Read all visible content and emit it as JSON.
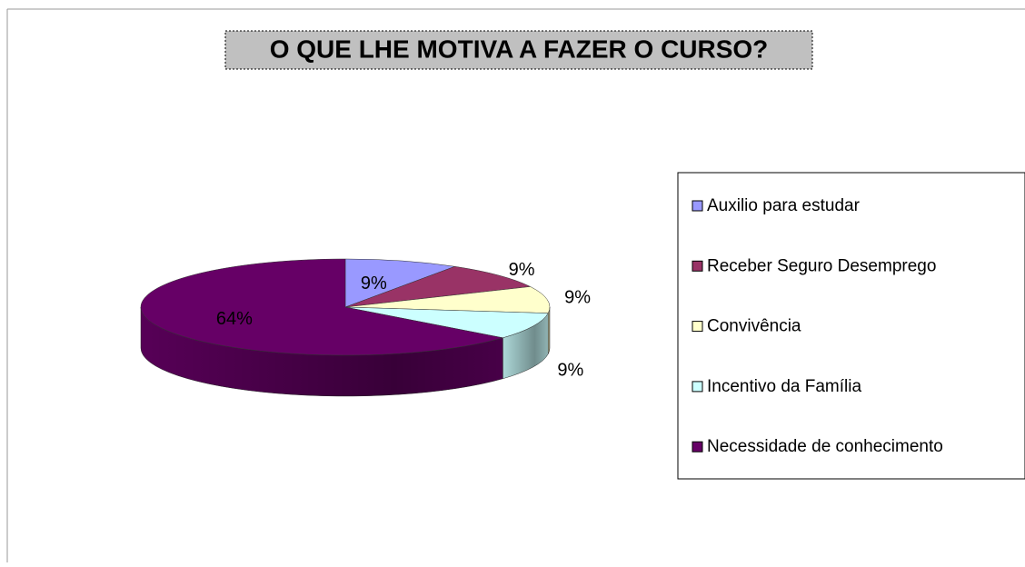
{
  "chart_data": {
    "type": "pie3d",
    "title": "O QUE LHE MOTIVA A FAZER O CURSO?",
    "categories": [
      "Auxilio para estudar",
      "Receber Seguro Desemprego",
      "Convivência",
      "Incentivo da Família",
      "Necessidade de conhecimento"
    ],
    "values": [
      9,
      9,
      9,
      9,
      64
    ],
    "value_labels": [
      "9%",
      "9%",
      "9%",
      "9%",
      "64%"
    ],
    "colors": [
      "#9999ff",
      "#993366",
      "#ffffcc",
      "#ccffff",
      "#660066"
    ],
    "legend": "right"
  }
}
